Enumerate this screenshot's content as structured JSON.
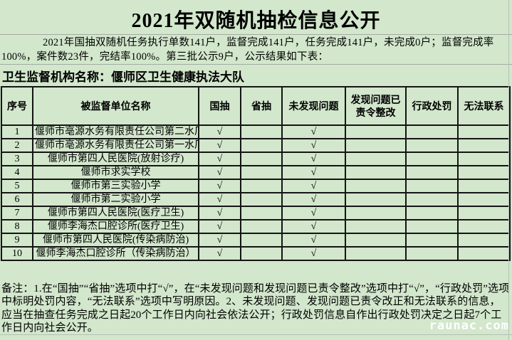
{
  "page": {
    "title": "2021年双随机抽检信息公开",
    "intro": "2021年国抽双随机任务执行单数141户，监督完成141户，任务完成141户，未完成0户；监督完成率100%，案件数23件，完结率100%。第三批公示9户，公示结果如下表：",
    "org_line": "卫生监督机构名称：偃师区卫生健康执法大队",
    "note": "备注：1.在“国抽”“省抽”选项中打“√”，在“未发现问题和发现问题已责令整改”选项中打“√”，“行政处罚”选项中标明处罚内容，“无法联系”选项中写明原因。2、未发现问题、发现问题已责令改正和无法联系的信息，应当在抽查任务完成之日起20个工作日内向社会依法公开；行政处罚信息自作出行政处罚决定之日起7个工作日内向社会公开。",
    "watermark": "raunac.com"
  },
  "colors": {
    "background": "#d2e7cc",
    "grid_border": "#141414",
    "separator_line": "#a3aba3",
    "watermark_text": "#ffffff"
  },
  "table": {
    "check_symbol": "√",
    "columns": [
      "序号",
      "被监督单位名称",
      "国抽",
      "省抽",
      "未发现问题",
      "发现问题已责令整改",
      "行政处罚",
      "无法联系"
    ],
    "rows": [
      [
        "1",
        "偃师市亳源水务有限责任公司第二水厂",
        "√",
        "",
        "√",
        "",
        "",
        ""
      ],
      [
        "2",
        "偃师市亳源水务有限责任公司第一水厂",
        "√",
        "",
        "√",
        "",
        "",
        ""
      ],
      [
        "3",
        "偃师市第四人民医院(放射诊疗)",
        "√",
        "",
        "√",
        "",
        "",
        ""
      ],
      [
        "4",
        "偃师市求实学校",
        "√",
        "",
        "√",
        "",
        "",
        ""
      ],
      [
        "5",
        "偃师市第三实验小学",
        "√",
        "",
        "√",
        "",
        "",
        ""
      ],
      [
        "6",
        "偃师市第二实验小学",
        "√",
        "",
        "√",
        "",
        "",
        ""
      ],
      [
        "7",
        "偃师市第四人民医院(医疗卫生)",
        "√",
        "",
        "√",
        "",
        "",
        ""
      ],
      [
        "8",
        "偃师李海杰口腔诊所(医疗卫生)",
        "√",
        "",
        "√",
        "",
        "",
        ""
      ],
      [
        "9",
        "偃师市第四人民医院(传染病防治)",
        "√",
        "",
        "√",
        "",
        "",
        ""
      ],
      [
        "10",
        "偃师李海杰口腔诊所（传染病防治）",
        "√",
        "",
        "√",
        "",
        "",
        ""
      ]
    ]
  }
}
